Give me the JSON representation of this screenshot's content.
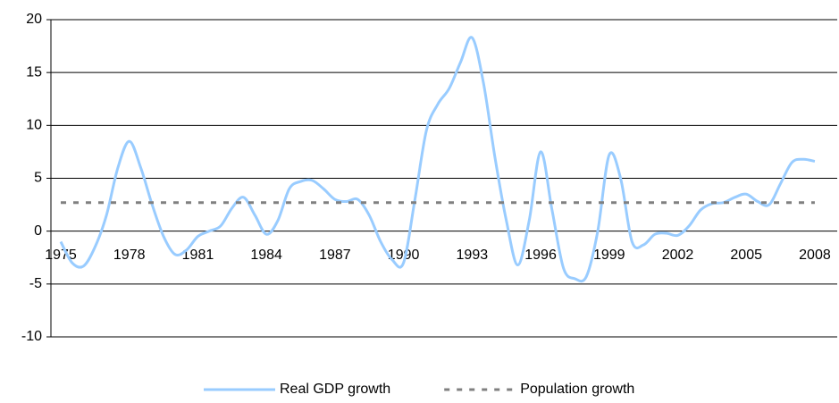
{
  "chart_data": {
    "type": "line",
    "x": [
      1975,
      1975.5,
      1976,
      1976.5,
      1977,
      1977.5,
      1978,
      1978.5,
      1979,
      1979.5,
      1980,
      1980.5,
      1981,
      1981.5,
      1982,
      1982.5,
      1983,
      1983.5,
      1984,
      1984.5,
      1985,
      1985.5,
      1986,
      1986.5,
      1987,
      1987.5,
      1988,
      1988.5,
      1989,
      1989.5,
      1990,
      1990.5,
      1991,
      1991.5,
      1992,
      1992.5,
      1993,
      1993.5,
      1994,
      1994.5,
      1995,
      1995.5,
      1996,
      1996.5,
      1997,
      1997.5,
      1998,
      1998.5,
      1999,
      1999.5,
      2000,
      2000.5,
      2001,
      2001.5,
      2002,
      2002.5,
      2003,
      2003.5,
      2004,
      2004.5,
      2005,
      2005.5,
      2006,
      2006.5,
      2007,
      2007.5,
      2008
    ],
    "series": [
      {
        "name": "Real GDP growth",
        "color": "#99ccff",
        "dash": false,
        "values": [
          -1,
          -3,
          -3.3,
          -1.5,
          1.5,
          6,
          8.5,
          6,
          2.5,
          -0.5,
          -2.2,
          -1.8,
          -0.5,
          0,
          0.5,
          2.2,
          3.2,
          1.5,
          -0.3,
          1,
          4,
          4.7,
          4.8,
          4,
          3,
          2.8,
          3,
          1.5,
          -1,
          -2.7,
          -3,
          3,
          9.5,
          12,
          13.5,
          16,
          18.3,
          14,
          7,
          1,
          -3.2,
          1,
          7.5,
          2,
          -3.5,
          -4.5,
          -4.3,
          0,
          7.2,
          5,
          -1,
          -1.3,
          -0.3,
          -0.2,
          -0.4,
          0.5,
          2,
          2.6,
          2.7,
          3.2,
          3.5,
          2.8,
          2.5,
          4.5,
          6.5,
          6.8,
          6.6
        ]
      },
      {
        "name": "Population growth",
        "color": "#808080",
        "dash": true,
        "values": [
          2.7,
          2.7,
          2.7,
          2.7,
          2.7,
          2.7,
          2.7,
          2.7,
          2.7,
          2.7,
          2.7,
          2.7,
          2.7,
          2.7,
          2.7,
          2.7,
          2.7,
          2.7,
          2.7,
          2.7,
          2.7,
          2.7,
          2.7,
          2.7,
          2.7,
          2.7,
          2.7,
          2.7,
          2.7,
          2.7,
          2.7,
          2.7,
          2.7,
          2.7,
          2.7,
          2.7,
          2.7,
          2.7,
          2.7,
          2.7,
          2.7,
          2.7,
          2.7,
          2.7,
          2.7,
          2.7,
          2.7,
          2.7,
          2.7,
          2.7,
          2.7,
          2.7,
          2.7,
          2.7,
          2.7,
          2.7,
          2.7,
          2.7,
          2.7,
          2.7,
          2.7,
          2.7,
          2.7,
          2.7,
          2.7,
          2.7,
          2.7
        ]
      }
    ],
    "xlim": [
      1974.57,
      2008.98
    ],
    "xticks": [
      1975,
      1978,
      1981,
      1984,
      1987,
      1990,
      1993,
      1996,
      1999,
      2002,
      2005,
      2008
    ],
    "ylim": [
      -10,
      20
    ],
    "yticks": [
      -10,
      -5,
      0,
      5,
      10,
      15,
      20
    ],
    "grid": true,
    "legend": "bottom"
  }
}
